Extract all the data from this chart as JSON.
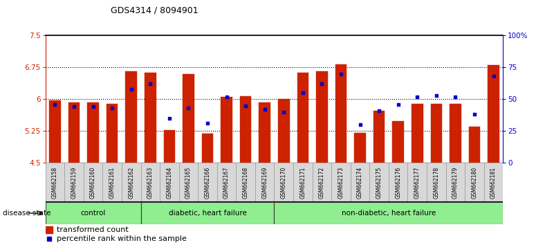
{
  "title": "GDS4314 / 8094901",
  "samples": [
    "GSM662158",
    "GSM662159",
    "GSM662160",
    "GSM662161",
    "GSM662162",
    "GSM662163",
    "GSM662164",
    "GSM662165",
    "GSM662166",
    "GSM662167",
    "GSM662168",
    "GSM662169",
    "GSM662170",
    "GSM662171",
    "GSM662172",
    "GSM662173",
    "GSM662174",
    "GSM662175",
    "GSM662176",
    "GSM662177",
    "GSM662178",
    "GSM662179",
    "GSM662180",
    "GSM662181"
  ],
  "transformed_count": [
    5.97,
    5.93,
    5.93,
    5.9,
    6.65,
    6.62,
    5.27,
    6.6,
    5.19,
    6.06,
    6.07,
    5.93,
    6.0,
    6.62,
    6.65,
    6.82,
    5.2,
    5.73,
    5.48,
    5.9,
    5.9,
    5.9,
    5.36,
    6.8
  ],
  "percentile_rank": [
    46,
    44,
    44,
    43,
    58,
    62,
    35,
    43,
    31,
    52,
    45,
    42,
    40,
    55,
    62,
    70,
    30,
    41,
    46,
    52,
    53,
    52,
    38,
    68
  ],
  "ylim_left": [
    4.5,
    7.5
  ],
  "ylim_right": [
    0,
    100
  ],
  "yticks_left": [
    4.5,
    5.25,
    6.0,
    6.75,
    7.5
  ],
  "ytick_labels_left": [
    "4.5",
    "5.25",
    "6",
    "6.75",
    "7.5"
  ],
  "yticks_right": [
    0,
    25,
    50,
    75,
    100
  ],
  "ytick_labels_right": [
    "0",
    "25",
    "50",
    "75",
    "100%"
  ],
  "bar_color": "#cc2200",
  "dot_color": "#0000cc",
  "bar_width": 0.6,
  "label_color_left": "#cc2200",
  "label_color_right": "#0000cc",
  "disease_state_label": "disease state",
  "legend_item1": "transformed count",
  "legend_item2": "percentile rank within the sample",
  "groups": [
    {
      "label": "control",
      "start": 0,
      "end": 4,
      "color": "#90ee90"
    },
    {
      "label": "diabetic, heart failure",
      "start": 5,
      "end": 11,
      "color": "#90ee90"
    },
    {
      "label": "non-diabetic, heart failure",
      "start": 12,
      "end": 23,
      "color": "#90ee90"
    }
  ],
  "group_dividers": [
    4.5,
    11.5
  ]
}
